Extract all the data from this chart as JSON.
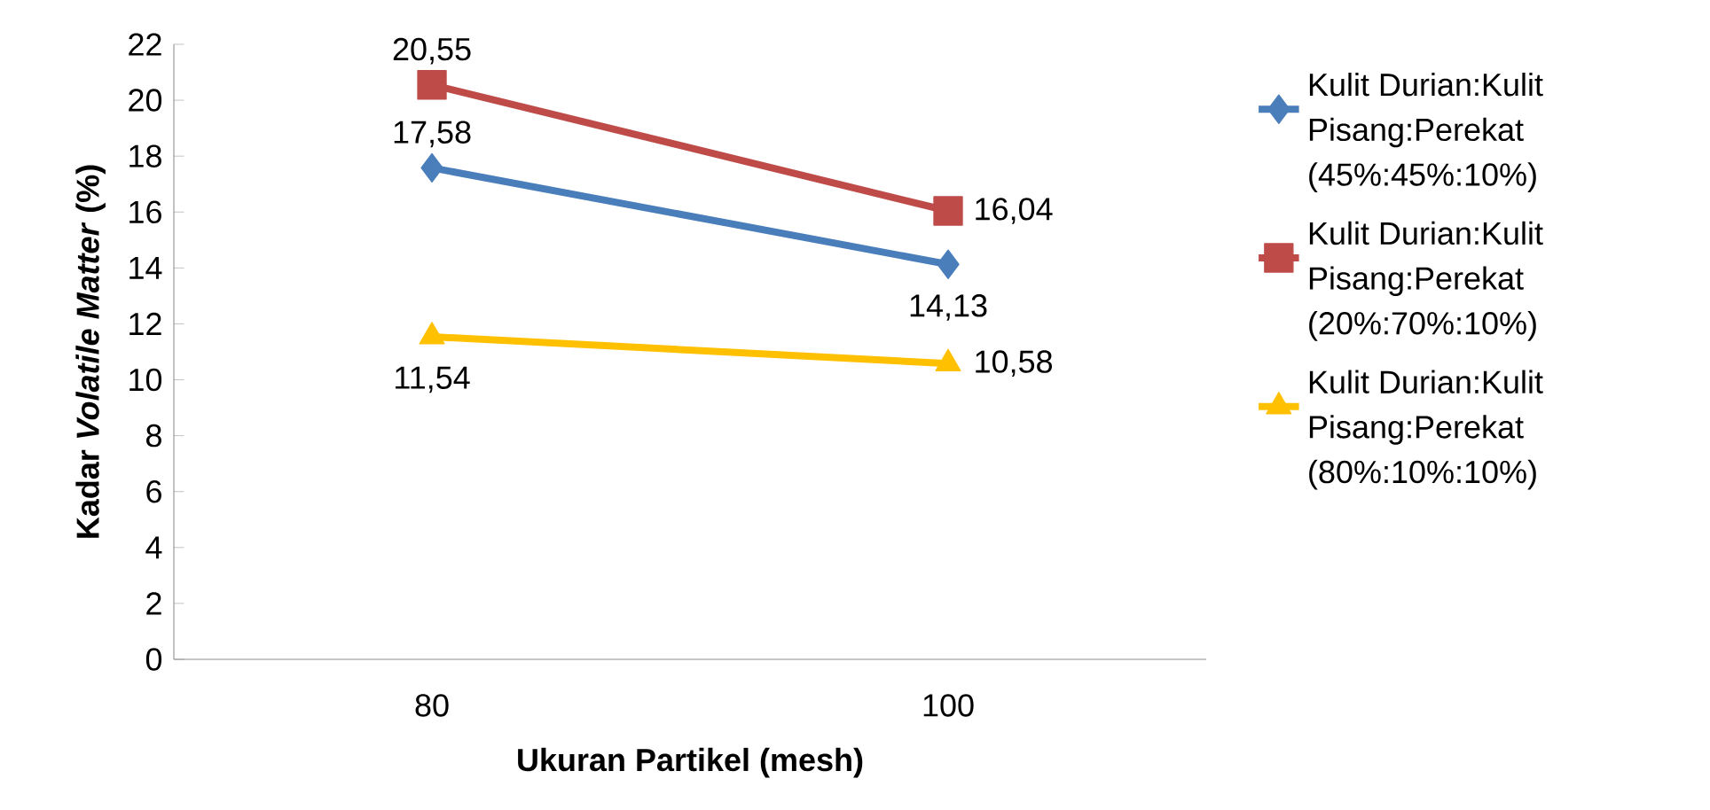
{
  "chart_data": {
    "type": "line",
    "xlabel": "Ukuran Partikel (mesh)",
    "ylabel": "Kadar *Volatile Matter* (%)",
    "categories": [
      "80",
      "100"
    ],
    "series": [
      {
        "name": "Kulit Durian:Kulit Pisang:Perekat (45%:45%:10%)",
        "color": "#4a7ebb",
        "marker": "diamond",
        "values": [
          17.58,
          14.13
        ],
        "value_labels": [
          "17,58",
          "14,13"
        ]
      },
      {
        "name": "Kulit Durian:Kulit Pisang:Perekat (20%:70%:10%)",
        "color": "#be4b48",
        "marker": "square",
        "values": [
          20.55,
          16.04
        ],
        "value_labels": [
          "20,55",
          "16,04"
        ]
      },
      {
        "name": "Kulit Durian:Kulit Pisang:Perekat (80%:10%:10%)",
        "color": "#ffc000",
        "marker": "triangle",
        "values": [
          11.54,
          10.58
        ],
        "value_labels": [
          "11,54",
          "10,58"
        ]
      }
    ],
    "ylim": [
      0,
      22
    ],
    "yticks": [
      0,
      2,
      4,
      6,
      8,
      10,
      12,
      14,
      16,
      18,
      20,
      22
    ],
    "grid": false,
    "legend": "right"
  }
}
